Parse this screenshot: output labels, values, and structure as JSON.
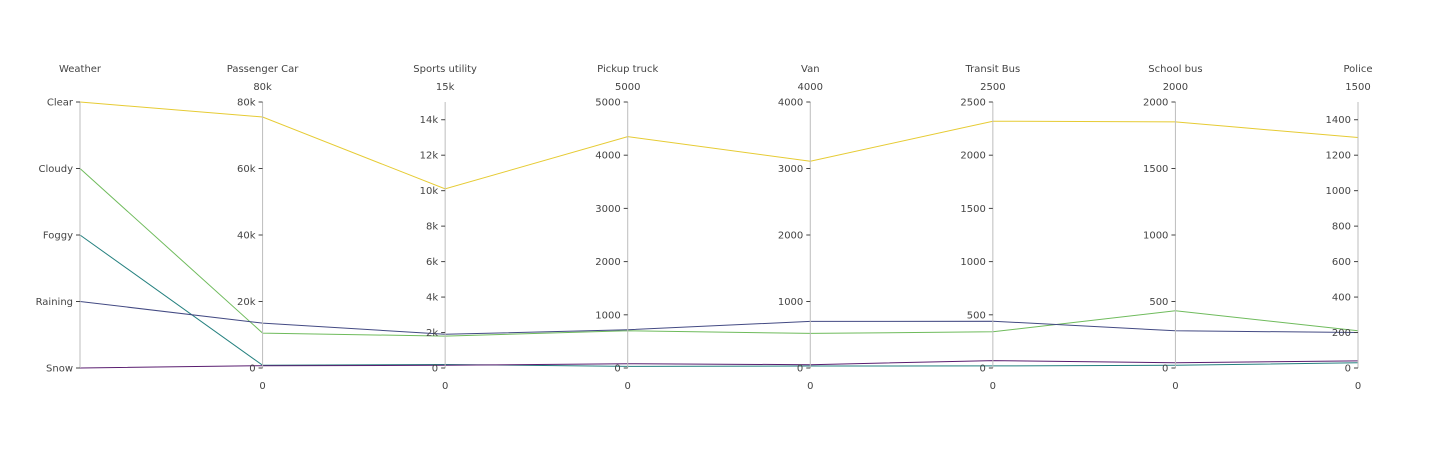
{
  "chart_data": {
    "type": "parallel_coordinates",
    "dimensions": [
      {
        "label": "Weather",
        "type": "categorical",
        "categories": [
          "Snow",
          "Raining",
          "Foggy",
          "Cloudy",
          "Clear"
        ],
        "ticktext": [
          "Clear",
          "Cloudy",
          "Foggy",
          "Raining",
          "Snow"
        ]
      },
      {
        "label": "Passenger Car",
        "range": [
          0,
          80000
        ],
        "range_labels": [
          "0",
          "80k"
        ],
        "ticks": [
          0,
          20000,
          40000,
          60000,
          80000
        ],
        "ticktext": [
          "0",
          "20k",
          "40k",
          "60k",
          "80k"
        ]
      },
      {
        "label": "Sports utility",
        "range": [
          0,
          15000
        ],
        "range_labels": [
          "0",
          "15k"
        ],
        "ticks": [
          0,
          2000,
          4000,
          6000,
          8000,
          10000,
          12000,
          14000
        ],
        "ticktext": [
          "0",
          "2k",
          "4k",
          "6k",
          "8k",
          "10k",
          "12k",
          "14k"
        ]
      },
      {
        "label": "Pickup truck",
        "range": [
          0,
          5000
        ],
        "range_labels": [
          "0",
          "5000"
        ],
        "ticks": [
          0,
          1000,
          2000,
          3000,
          4000,
          5000
        ],
        "ticktext": [
          "0",
          "1000",
          "2000",
          "3000",
          "4000",
          "5000"
        ]
      },
      {
        "label": "Van",
        "range": [
          0,
          4000
        ],
        "range_labels": [
          "0",
          "4000"
        ],
        "ticks": [
          0,
          1000,
          2000,
          3000,
          4000
        ],
        "ticktext": [
          "0",
          "1000",
          "2000",
          "3000",
          "4000"
        ]
      },
      {
        "label": "Transit Bus",
        "range": [
          0,
          2500
        ],
        "range_labels": [
          "0",
          "2500"
        ],
        "ticks": [
          0,
          500,
          1000,
          1500,
          2000,
          2500
        ],
        "ticktext": [
          "0",
          "500",
          "1000",
          "1500",
          "2000",
          "2500"
        ]
      },
      {
        "label": "School bus",
        "range": [
          0,
          2000
        ],
        "range_labels": [
          "0",
          "2000"
        ],
        "ticks": [
          0,
          500,
          1000,
          1500,
          2000
        ],
        "ticktext": [
          "0",
          "500",
          "1000",
          "1500",
          "2000"
        ]
      },
      {
        "label": "Police",
        "range": [
          0,
          1500
        ],
        "range_labels": [
          "0",
          "1500"
        ],
        "ticks": [
          0,
          200,
          400,
          600,
          800,
          1000,
          1200,
          1400
        ],
        "ticktext": [
          "0",
          "200",
          "400",
          "600",
          "800",
          "1000",
          "1200",
          "1400"
        ]
      }
    ],
    "series": [
      {
        "weather": "Clear",
        "color": "#e6cb33",
        "values": [
          75500,
          10100,
          4350,
          3110,
          2320,
          1850,
          1300
        ]
      },
      {
        "weather": "Cloudy",
        "color": "#6fbb5c",
        "values": [
          10500,
          1800,
          700,
          520,
          340,
          430,
          210
        ]
      },
      {
        "weather": "Foggy",
        "color": "#24807f",
        "values": [
          800,
          200,
          30,
          30,
          20,
          20,
          30
        ]
      },
      {
        "weather": "Raining",
        "color": "#434a83",
        "values": [
          13500,
          1900,
          720,
          700,
          440,
          280,
          200
        ]
      },
      {
        "weather": "Snow",
        "color": "#5a1e70",
        "values": [
          700,
          150,
          80,
          50,
          70,
          40,
          40
        ]
      }
    ]
  }
}
